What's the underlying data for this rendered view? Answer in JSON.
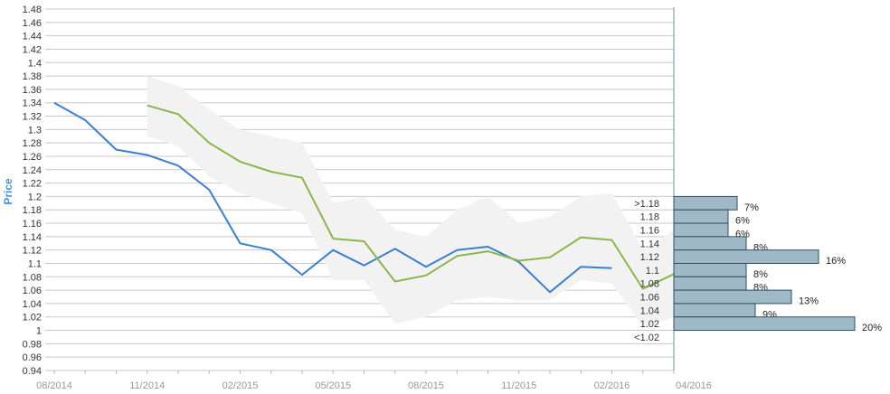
{
  "chart_data": {
    "type": "line",
    "ylabel": "Price",
    "ylim": [
      0.94,
      1.48
    ],
    "y_ticks": [
      "1.48",
      "1.46",
      "1.44",
      "1.42",
      "1.4",
      "1.38",
      "1.36",
      "1.34",
      "1.32",
      "1.3",
      "1.28",
      "1.26",
      "1.24",
      "1.22",
      "1.2",
      "1.18",
      "1.16",
      "1.14",
      "1.12",
      "1.1",
      "1.08",
      "1.06",
      "1.04",
      "1.02",
      "1",
      "0.98",
      "0.96",
      "0.94"
    ],
    "x_ticks": [
      "08/2014",
      "11/2014",
      "02/2015",
      "05/2015",
      "08/2015",
      "11/2015",
      "02/2016",
      "04/2016"
    ],
    "grid": true,
    "series": [
      {
        "color": "#3a7fd0",
        "values": [
          {
            "x": "2014-08",
            "y": 1.34
          },
          {
            "x": "2014-09",
            "y": 1.314
          },
          {
            "x": "2014-10",
            "y": 1.27
          },
          {
            "x": "2014-11",
            "y": 1.262
          },
          {
            "x": "2014-12",
            "y": 1.246
          },
          {
            "x": "2015-01",
            "y": 1.21
          },
          {
            "x": "2015-02",
            "y": 1.13
          },
          {
            "x": "2015-03",
            "y": 1.12
          },
          {
            "x": "2015-04",
            "y": 1.083
          },
          {
            "x": "2015-05",
            "y": 1.12
          },
          {
            "x": "2015-06",
            "y": 1.097
          },
          {
            "x": "2015-07",
            "y": 1.122
          },
          {
            "x": "2015-08",
            "y": 1.095
          },
          {
            "x": "2015-09",
            "y": 1.12
          },
          {
            "x": "2015-10",
            "y": 1.125
          },
          {
            "x": "2015-11",
            "y": 1.102
          },
          {
            "x": "2015-12",
            "y": 1.057
          },
          {
            "x": "2016-01",
            "y": 1.095
          },
          {
            "x": "2016-02",
            "y": 1.093
          }
        ]
      },
      {
        "color": "#8cb54a",
        "values": [
          {
            "x": "2014-11",
            "y": 1.336
          },
          {
            "x": "2014-12",
            "y": 1.323
          },
          {
            "x": "2015-01",
            "y": 1.28
          },
          {
            "x": "2015-02",
            "y": 1.252
          },
          {
            "x": "2015-03",
            "y": 1.237
          },
          {
            "x": "2015-04",
            "y": 1.228
          },
          {
            "x": "2015-05",
            "y": 1.137
          },
          {
            "x": "2015-06",
            "y": 1.133
          },
          {
            "x": "2015-07",
            "y": 1.073
          },
          {
            "x": "2015-08",
            "y": 1.082
          },
          {
            "x": "2015-09",
            "y": 1.111
          },
          {
            "x": "2015-10",
            "y": 1.118
          },
          {
            "x": "2015-11",
            "y": 1.104
          },
          {
            "x": "2015-12",
            "y": 1.109
          },
          {
            "x": "2016-01",
            "y": 1.139
          },
          {
            "x": "2016-02",
            "y": 1.135
          },
          {
            "x": "2016-03",
            "y": 1.062
          },
          {
            "x": "2016-04",
            "y": 1.084
          },
          {
            "x": "2016-04-15",
            "y": 1.084
          }
        ]
      }
    ],
    "band": {
      "color": "#f2f2f2",
      "upper": [
        {
          "x": "2014-11",
          "y": 1.38
        },
        {
          "x": "2014-12",
          "y": 1.365
        },
        {
          "x": "2015-01",
          "y": 1.33
        },
        {
          "x": "2015-02",
          "y": 1.3
        },
        {
          "x": "2015-03",
          "y": 1.29
        },
        {
          "x": "2015-04",
          "y": 1.28
        },
        {
          "x": "2015-05",
          "y": 1.19
        },
        {
          "x": "2015-06",
          "y": 1.2
        },
        {
          "x": "2015-07",
          "y": 1.15
        },
        {
          "x": "2015-08",
          "y": 1.14
        },
        {
          "x": "2015-09",
          "y": 1.18
        },
        {
          "x": "2015-10",
          "y": 1.2
        },
        {
          "x": "2015-11",
          "y": 1.16
        },
        {
          "x": "2015-12",
          "y": 1.17
        },
        {
          "x": "2016-01",
          "y": 1.2
        },
        {
          "x": "2016-02",
          "y": 1.205
        },
        {
          "x": "2016-03",
          "y": 1.12
        },
        {
          "x": "2016-04",
          "y": 1.15
        }
      ],
      "lower": [
        {
          "x": "2014-11",
          "y": 1.29
        },
        {
          "x": "2014-12",
          "y": 1.275
        },
        {
          "x": "2015-01",
          "y": 1.23
        },
        {
          "x": "2015-02",
          "y": 1.205
        },
        {
          "x": "2015-03",
          "y": 1.19
        },
        {
          "x": "2015-04",
          "y": 1.175
        },
        {
          "x": "2015-05",
          "y": 1.075
        },
        {
          "x": "2015-06",
          "y": 1.075
        },
        {
          "x": "2015-07",
          "y": 1.01
        },
        {
          "x": "2015-08",
          "y": 1.02
        },
        {
          "x": "2015-09",
          "y": 1.045
        },
        {
          "x": "2015-10",
          "y": 1.05
        },
        {
          "x": "2015-11",
          "y": 1.045
        },
        {
          "x": "2015-12",
          "y": 1.045
        },
        {
          "x": "2016-01",
          "y": 1.075
        },
        {
          "x": "2016-02",
          "y": 1.07
        },
        {
          "x": "2016-03",
          "y": 1.005
        },
        {
          "x": "2016-04",
          "y": 1.02
        }
      ]
    },
    "histogram": {
      "color": "#9fb9c7",
      "bins": [
        {
          "label": ">1.18",
          "y": 1.19,
          "pct": 7,
          "pct_label": "7%"
        },
        {
          "label": "1.18",
          "y": 1.17,
          "pct": 6,
          "pct_label": "6%"
        },
        {
          "label": "1.16",
          "y": 1.15,
          "pct": 6,
          "pct_label": "6%"
        },
        {
          "label": "1.14",
          "y": 1.13,
          "pct": 8,
          "pct_label": "8%"
        },
        {
          "label": "1.12",
          "y": 1.11,
          "pct": 16,
          "pct_label": "16%"
        },
        {
          "label": "1.1",
          "y": 1.09,
          "pct": 8,
          "pct_label": "8%"
        },
        {
          "label": "1.08",
          "y": 1.07,
          "pct": 8,
          "pct_label": "8%"
        },
        {
          "label": "1.06",
          "y": 1.05,
          "pct": 13,
          "pct_label": "13%"
        },
        {
          "label": "1.04",
          "y": 1.03,
          "pct": 9,
          "pct_label": "9%"
        },
        {
          "label": "1.02",
          "y": 1.01,
          "pct": 20,
          "pct_label": "20%"
        },
        {
          "label": "<1.02",
          "y": 0.99,
          "pct": null,
          "pct_label": ""
        }
      ]
    }
  }
}
